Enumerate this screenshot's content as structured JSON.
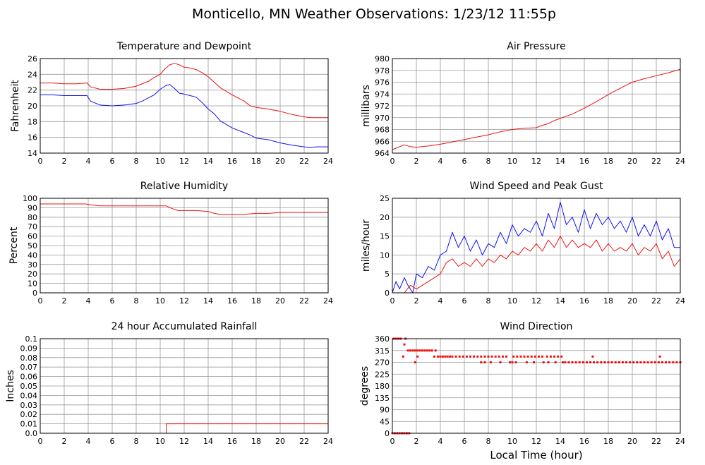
{
  "page_title": "Monticello, MN Weather Observations: 1/23/12 11:55p",
  "footer_xlabel": "Local Time (hour)",
  "colors": {
    "red": "#ee1111",
    "blue": "#1111ee",
    "grid": "#9a9a9a",
    "frame": "#000000"
  },
  "chart_data": [
    {
      "id": "temp",
      "type": "line",
      "title": "Temperature and Dewpoint",
      "xlabel": "",
      "ylabel": "Fahrenheit",
      "xlim": [
        0,
        24
      ],
      "ylim": [
        14,
        26
      ],
      "xticks": [
        0,
        2,
        4,
        6,
        8,
        10,
        12,
        14,
        16,
        18,
        20,
        22,
        24
      ],
      "yticks": [
        "14",
        "16",
        "18",
        "20",
        "22",
        "24",
        "26"
      ],
      "grid": true,
      "series": [
        {
          "color": "#ee1111",
          "x": [
            0,
            1,
            2,
            3,
            3.9,
            4.2,
            5,
            6,
            7,
            8,
            9,
            9.5,
            10,
            10.4,
            10.8,
            11.2,
            11.6,
            12,
            12.5,
            13,
            13.5,
            14,
            14.5,
            15,
            16,
            17,
            17.5,
            18,
            19,
            20,
            21,
            22,
            22.5,
            23,
            24
          ],
          "y": [
            22.9,
            22.9,
            22.8,
            22.8,
            22.9,
            22.4,
            22.1,
            22.1,
            22.2,
            22.5,
            23.1,
            23.6,
            24.0,
            24.7,
            25.2,
            25.4,
            25.2,
            24.9,
            24.8,
            24.6,
            24.2,
            23.7,
            23.0,
            22.3,
            21.4,
            20.6,
            20.0,
            19.8,
            19.6,
            19.3,
            18.9,
            18.6,
            18.5,
            18.5,
            18.5
          ]
        },
        {
          "color": "#1111ee",
          "x": [
            0,
            1,
            2,
            3,
            3.9,
            4.2,
            5,
            6,
            7,
            8,
            8.5,
            9,
            9.5,
            10,
            10.5,
            10.8,
            11.2,
            11.6,
            12,
            12.5,
            13,
            13.5,
            14,
            14.5,
            15,
            16,
            17,
            17.5,
            18,
            19,
            20,
            21,
            22,
            22.5,
            23,
            24
          ],
          "y": [
            21.4,
            21.4,
            21.3,
            21.3,
            21.3,
            20.6,
            20.1,
            20.0,
            20.1,
            20.3,
            20.6,
            21.0,
            21.4,
            22.1,
            22.6,
            22.7,
            22.2,
            21.6,
            21.5,
            21.3,
            21.1,
            20.4,
            19.6,
            19.0,
            18.1,
            17.2,
            16.6,
            16.3,
            15.9,
            15.7,
            15.3,
            15.0,
            14.8,
            14.7,
            14.8,
            14.8
          ]
        }
      ]
    },
    {
      "id": "pressure",
      "type": "line",
      "title": "Air Pressure",
      "xlabel": "",
      "ylabel": "millibars",
      "xlim": [
        0,
        24
      ],
      "ylim": [
        964,
        980
      ],
      "xticks": [
        0,
        2,
        4,
        6,
        8,
        10,
        12,
        14,
        16,
        18,
        20,
        22,
        24
      ],
      "yticks": [
        "964",
        "966",
        "968",
        "970",
        "972",
        "974",
        "976",
        "978",
        "980"
      ],
      "grid": true,
      "series": [
        {
          "color": "#ee1111",
          "x": [
            0,
            0.5,
            1,
            1.5,
            2,
            3,
            4,
            5,
            6,
            7,
            8,
            9,
            10,
            11,
            12,
            12.5,
            13,
            13.5,
            14,
            15,
            16,
            17,
            18,
            19,
            20,
            21,
            22,
            23,
            24
          ],
          "y": [
            964.6,
            965.0,
            965.4,
            965.1,
            965.0,
            965.2,
            965.5,
            965.9,
            966.3,
            966.7,
            967.1,
            967.6,
            968.0,
            968.2,
            968.3,
            968.7,
            969.0,
            969.5,
            969.9,
            970.6,
            971.6,
            972.7,
            973.9,
            975.0,
            976.0,
            976.6,
            977.1,
            977.6,
            978.2
          ]
        }
      ]
    },
    {
      "id": "humidity",
      "type": "line",
      "title": "Relative Humidity",
      "xlabel": "",
      "ylabel": "Percent",
      "xlim": [
        0,
        24
      ],
      "ylim": [
        0,
        100
      ],
      "xticks": [
        0,
        2,
        4,
        6,
        8,
        10,
        12,
        14,
        16,
        18,
        20,
        22,
        24
      ],
      "yticks": [
        "0",
        "10",
        "20",
        "30",
        "40",
        "50",
        "60",
        "70",
        "80",
        "90",
        "100"
      ],
      "grid": true,
      "series": [
        {
          "color": "#ee1111",
          "x": [
            0,
            1,
            2,
            3,
            3.8,
            4.2,
            5,
            6,
            7,
            8,
            9,
            10,
            10.5,
            11,
            11.5,
            12,
            13,
            14,
            14.5,
            15,
            16,
            17,
            18,
            19,
            20,
            21,
            22,
            23,
            24
          ],
          "y": [
            94,
            94,
            94,
            94,
            94,
            93,
            92,
            92,
            92,
            92,
            92,
            92,
            92,
            89,
            87,
            87,
            87,
            86,
            84,
            83,
            83,
            83,
            84,
            84,
            85,
            85,
            85,
            85,
            85
          ]
        }
      ]
    },
    {
      "id": "wind",
      "type": "line",
      "title": "Wind Speed and Peak Gust",
      "xlabel": "",
      "ylabel": "miles/hour",
      "xlim": [
        0,
        24
      ],
      "ylim": [
        0,
        25
      ],
      "xticks": [
        0,
        2,
        4,
        6,
        8,
        10,
        12,
        14,
        16,
        18,
        20,
        22,
        24
      ],
      "yticks": [
        "0",
        "5",
        "10",
        "15",
        "20",
        "25"
      ],
      "grid": true,
      "series": [
        {
          "color": "#1111ee",
          "x": [
            0,
            0.3,
            0.6,
            1,
            1.3,
            1.7,
            2,
            2.5,
            3,
            3.5,
            4,
            4.5,
            5,
            5.5,
            6,
            6.5,
            7,
            7.5,
            8,
            8.5,
            9,
            9.5,
            10,
            10.5,
            11,
            11.5,
            12,
            12.5,
            13,
            13.5,
            14,
            14.5,
            15,
            15.5,
            16,
            16.5,
            17,
            17.5,
            18,
            18.5,
            19,
            19.5,
            20,
            20.5,
            21,
            21.5,
            22,
            22.5,
            23,
            23.5,
            24
          ],
          "y": [
            0,
            3,
            1,
            4,
            2,
            0,
            5,
            4,
            7,
            6,
            10,
            11,
            16,
            12,
            15,
            11,
            14,
            10,
            13,
            12,
            16,
            13,
            18,
            15,
            17,
            16,
            19,
            15,
            21,
            17,
            24,
            18,
            20,
            16,
            22,
            17,
            21,
            18,
            20,
            17,
            19,
            16,
            20,
            15,
            18,
            15,
            19,
            14,
            17,
            12,
            12
          ]
        },
        {
          "color": "#ee1111",
          "x": [
            0,
            0.5,
            1,
            1.5,
            2,
            2.5,
            3,
            3.5,
            4,
            4.5,
            5,
            5.5,
            6,
            6.5,
            7,
            7.5,
            8,
            8.5,
            9,
            9.5,
            10,
            10.5,
            11,
            11.5,
            12,
            12.5,
            13,
            13.5,
            14,
            14.5,
            15,
            15.5,
            16,
            16.5,
            17,
            17.5,
            18,
            18.5,
            19,
            19.5,
            20,
            20.5,
            21,
            21.5,
            22,
            22.5,
            23,
            23.5,
            24
          ],
          "y": [
            0,
            0,
            0,
            2,
            1,
            2,
            3,
            4,
            5,
            8,
            9,
            7,
            8,
            7,
            9,
            7,
            9,
            8,
            10,
            9,
            11,
            10,
            12,
            11,
            13,
            11,
            14,
            12,
            15,
            12,
            14,
            12,
            13,
            12,
            14,
            11,
            13,
            11,
            12,
            11,
            13,
            10,
            12,
            11,
            13,
            9,
            11,
            7,
            9
          ]
        }
      ]
    },
    {
      "id": "rain",
      "type": "line",
      "title": "24 hour Accumulated Rainfall",
      "xlabel": "",
      "ylabel": "Inches",
      "xlim": [
        0,
        24
      ],
      "ylim": [
        0,
        0.1
      ],
      "xticks": [
        0,
        2,
        4,
        6,
        8,
        10,
        12,
        14,
        16,
        18,
        20,
        22,
        24
      ],
      "yticks": [
        "0.0",
        "0.01",
        "0.02",
        "0.03",
        "0.04",
        "0.05",
        "0.06",
        "0.07",
        "0.08",
        "0.09",
        "0.1"
      ],
      "grid": true,
      "series": [
        {
          "color": "#ee1111",
          "x": [
            0,
            10.5,
            10.5,
            24
          ],
          "y": [
            0,
            0,
            0.01,
            0.01
          ]
        }
      ]
    },
    {
      "id": "winddir",
      "type": "scatter",
      "title": "Wind Direction",
      "xlabel": "Local Time (hour)",
      "ylabel": "degrees",
      "xlim": [
        0,
        24
      ],
      "ylim": [
        0,
        360
      ],
      "xticks": [
        0,
        2,
        4,
        6,
        8,
        10,
        12,
        14,
        16,
        18,
        20,
        22,
        24
      ],
      "yticks": [
        "0",
        "45",
        "90",
        "135",
        "180",
        "225",
        "270",
        "315",
        "360"
      ],
      "grid": true,
      "series": [
        {
          "color": "#ee1111",
          "x": [
            0,
            0.2,
            0.4,
            0.6,
            0.8,
            1.0,
            1.2,
            1.4,
            0.1,
            0.3,
            0.5,
            0.7,
            1.1,
            0.9,
            1.0,
            1.3,
            1.5,
            1.7,
            1.9,
            2.1,
            2.3,
            2.5,
            2.7,
            2.9,
            3.1,
            3.3,
            3.6,
            1.9,
            2.1,
            3.5,
            3.8,
            4.0,
            4.2,
            4.4,
            4.6,
            4.8,
            5.0,
            5.3,
            5.6,
            5.9,
            6.2,
            6.5,
            6.8,
            7.1,
            7.4,
            7.7,
            8.0,
            8.3,
            8.6,
            8.9,
            9.2,
            9.5,
            7.4,
            7.7,
            8.2,
            9.0,
            9.8,
            10.1,
            10.4,
            10.7,
            10.0,
            10.3,
            11.0,
            11.3,
            11.6,
            11.9,
            12.2,
            12.5,
            11.2,
            11.8,
            12.6,
            12.9,
            13.2,
            13.5,
            13.8,
            14.1,
            13.0,
            13.6,
            14.2,
            14.4,
            14.7,
            15.0,
            15.3,
            15.6,
            15.9,
            16.2,
            16.5,
            16.8,
            17.1,
            16.7,
            17.4,
            17.7,
            18.0,
            18.3,
            18.6,
            18.9,
            19.2,
            19.5,
            19.8,
            20.1,
            20.4,
            20.7,
            21.0,
            21.3,
            21.6,
            21.9,
            22.2,
            22.5,
            22.8,
            22.3,
            23.1,
            23.4,
            23.7,
            24.0
          ],
          "y": [
            0,
            0,
            0,
            0,
            0,
            0,
            0,
            0,
            360,
            360,
            360,
            360,
            360,
            292,
            338,
            315,
            315,
            315,
            315,
            315,
            315,
            315,
            315,
            315,
            315,
            315,
            315,
            270,
            292,
            292,
            292,
            292,
            292,
            292,
            292,
            292,
            292,
            292,
            292,
            292,
            292,
            292,
            292,
            292,
            292,
            292,
            292,
            292,
            292,
            292,
            292,
            292,
            270,
            270,
            270,
            270,
            270,
            292,
            292,
            292,
            270,
            270,
            292,
            292,
            292,
            292,
            292,
            292,
            270,
            270,
            270,
            292,
            292,
            292,
            292,
            292,
            270,
            270,
            270,
            270,
            270,
            270,
            270,
            270,
            270,
            270,
            270,
            270,
            270,
            292,
            270,
            270,
            270,
            270,
            270,
            270,
            270,
            270,
            270,
            270,
            270,
            270,
            270,
            270,
            270,
            270,
            270,
            270,
            270,
            292,
            270,
            270,
            270,
            270
          ]
        }
      ]
    }
  ]
}
